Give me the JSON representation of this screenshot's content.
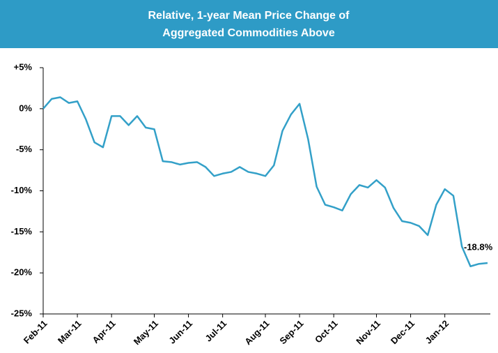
{
  "chart_data": {
    "type": "line",
    "title": [
      "Relative, 1-year Mean Price Change of",
      "Aggregated Commodities Above"
    ],
    "categories": [
      "Feb-11",
      null,
      null,
      null,
      "Mar-11",
      null,
      null,
      null,
      "Apr-11",
      null,
      null,
      null,
      null,
      "May-11",
      null,
      null,
      null,
      "Jun-11",
      null,
      null,
      null,
      "Jul-11",
      null,
      null,
      null,
      null,
      "Aug-11",
      null,
      null,
      null,
      "Sep-11",
      null,
      null,
      null,
      "Oct-11",
      null,
      null,
      null,
      null,
      "Nov-11",
      null,
      null,
      null,
      "Dec-11",
      null,
      null,
      null,
      "Jan-12",
      null,
      null,
      null,
      null,
      null
    ],
    "values": [
      0,
      1.2,
      1.4,
      0.7,
      0.9,
      -1.3,
      -4.1,
      -4.7,
      -0.9,
      -0.9,
      -2.0,
      -0.9,
      -2.3,
      -2.5,
      -6.4,
      -6.5,
      -6.8,
      -6.6,
      -6.5,
      -7.1,
      -8.2,
      -7.9,
      -7.7,
      -7.1,
      -7.7,
      -7.9,
      -8.2,
      -6.9,
      -2.7,
      -0.7,
      0.6,
      -3.7,
      -9.5,
      -11.7,
      -12.0,
      -12.4,
      -10.4,
      -9.3,
      -9.6,
      -8.7,
      -9.6,
      -12.1,
      -13.7,
      -13.9,
      -14.3,
      -15.4,
      -11.7,
      -9.8,
      -10.6,
      -16.8,
      -19.2,
      -18.9,
      -18.8
    ],
    "value_labels": [
      null,
      null,
      null,
      null,
      null,
      null,
      null,
      null,
      null,
      null,
      null,
      null,
      null,
      null,
      null,
      null,
      null,
      null,
      null,
      null,
      null,
      null,
      null,
      null,
      null,
      null,
      null,
      null,
      null,
      null,
      null,
      null,
      null,
      null,
      null,
      null,
      null,
      null,
      null,
      null,
      null,
      null,
      null,
      null,
      null,
      null,
      null,
      null,
      null,
      null,
      null,
      null,
      "-18.8%"
    ],
    "color": "#33a0c8",
    "ylim": [
      -25,
      5
    ],
    "yticks": [
      {
        "value": 5,
        "label": "+5%"
      },
      {
        "value": 0,
        "label": "0%"
      },
      {
        "value": -5,
        "label": "-5%"
      },
      {
        "value": -10,
        "label": "-10%"
      },
      {
        "value": -15,
        "label": "-15%"
      },
      {
        "value": -20,
        "label": "-20%"
      },
      {
        "value": -25,
        "label": "-25%"
      }
    ],
    "grid": false
  }
}
